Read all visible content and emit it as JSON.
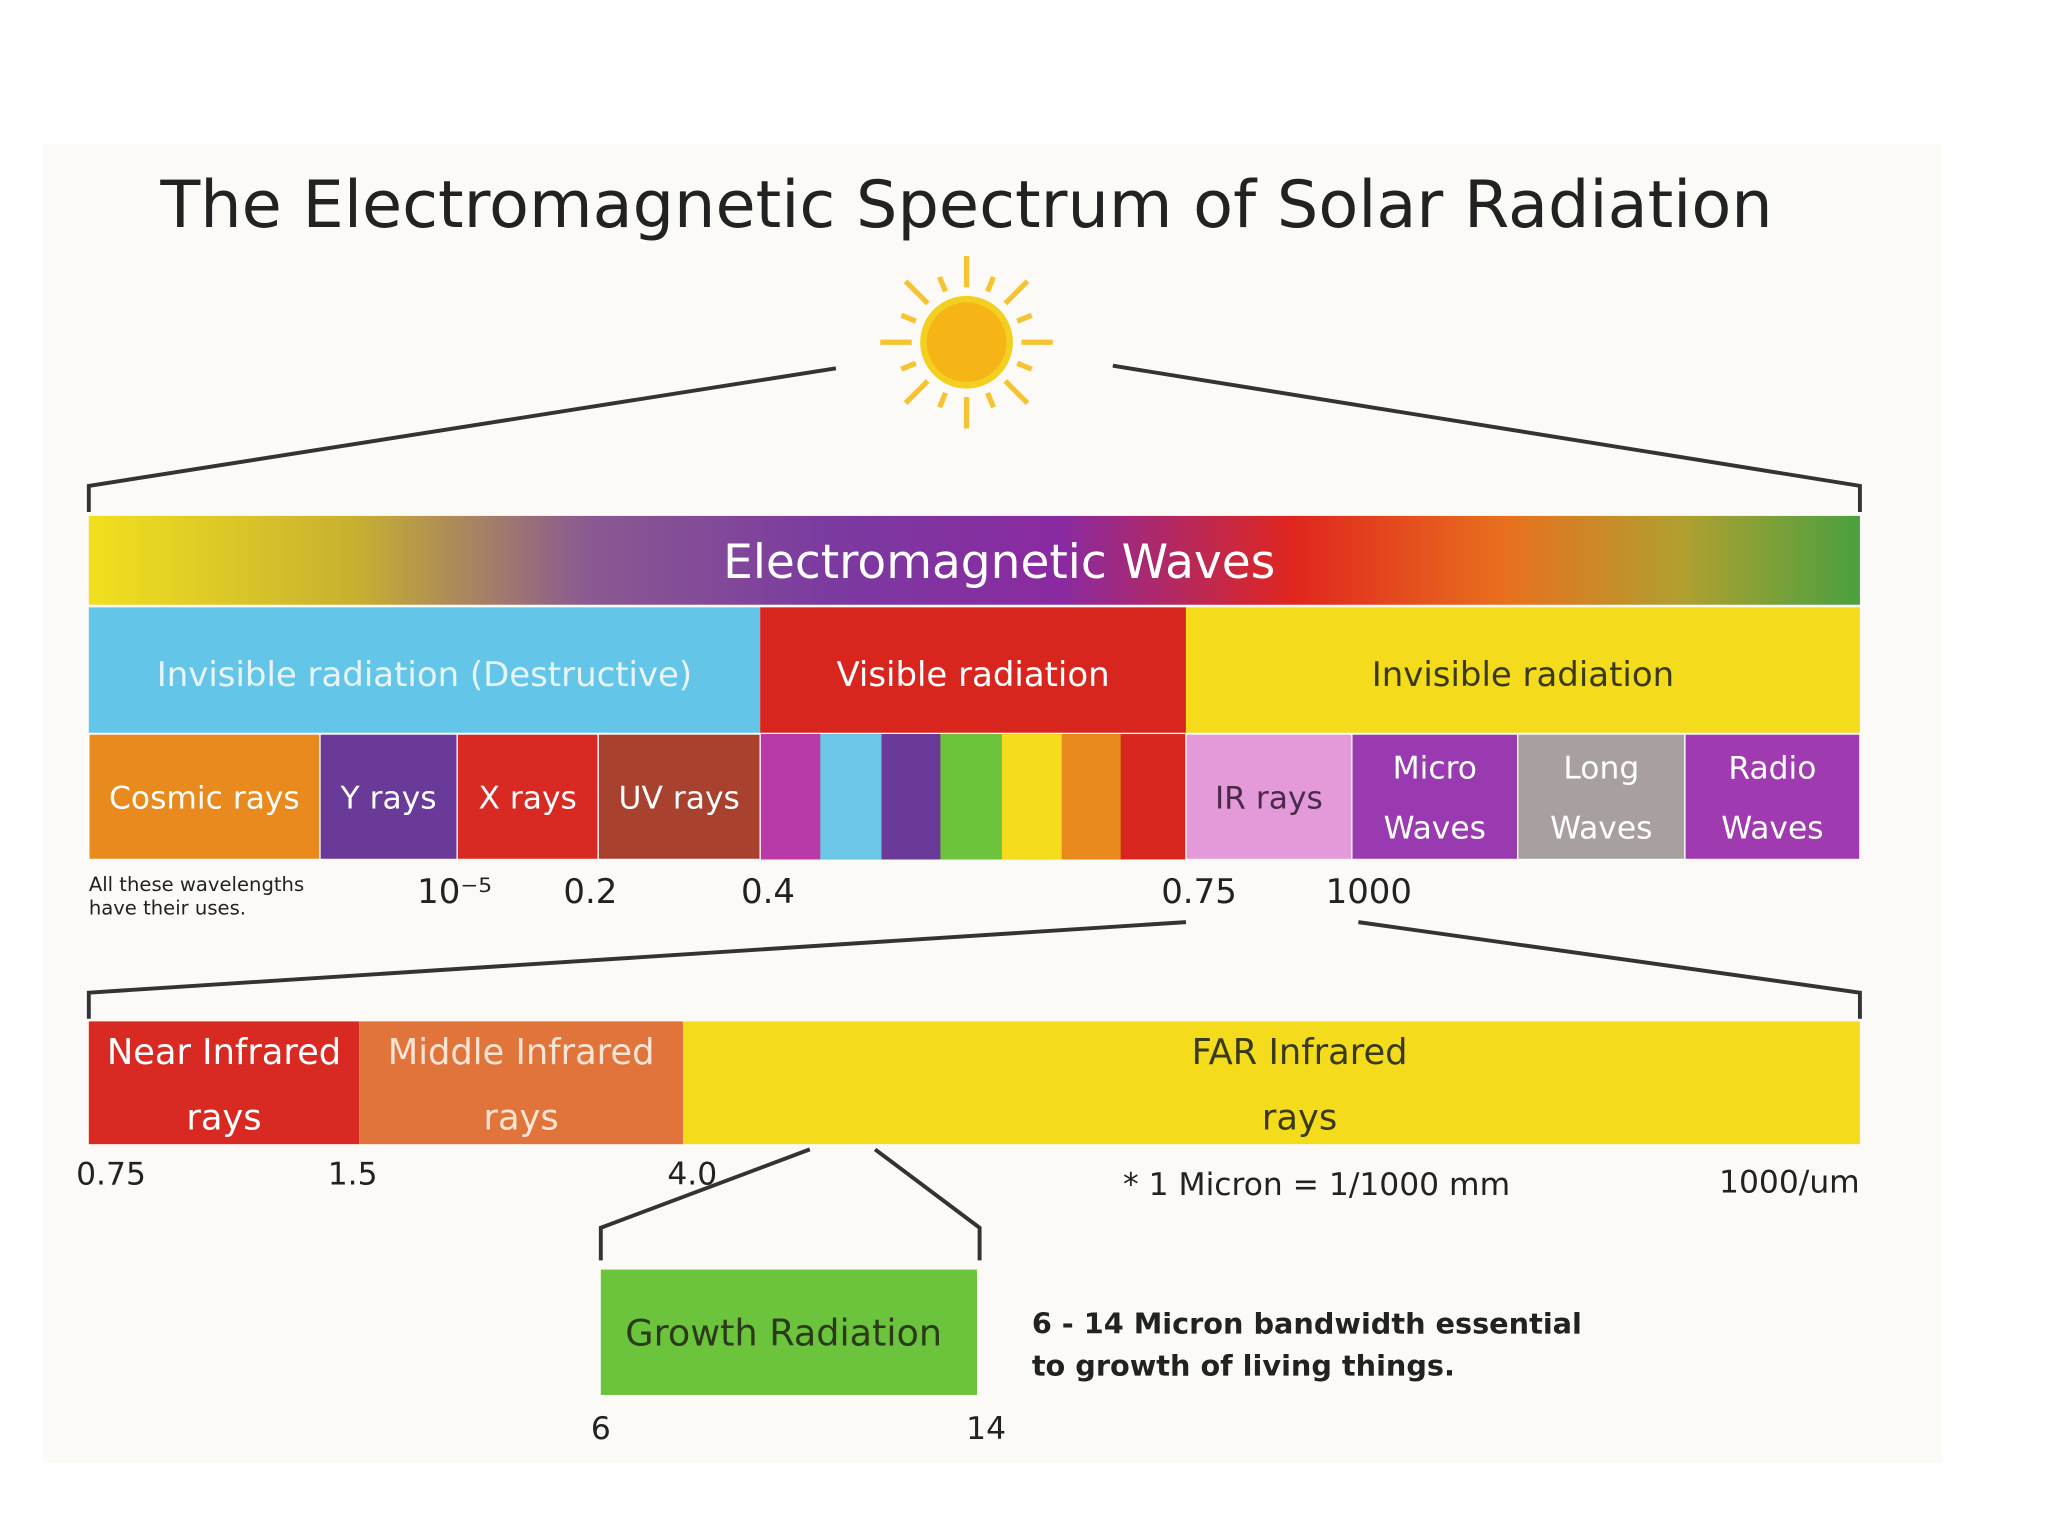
{
  "title": "The Electromagnetic Spectrum of Solar Radiation",
  "banner": "Electromagnetic Waves",
  "groups": [
    "Invisible radiation (Destructive)",
    "Visible radiation",
    "Invisible radiation"
  ],
  "bands": [
    [
      "Cosmic rays"
    ],
    [
      "Y rays"
    ],
    [
      "X rays"
    ],
    [
      "UV rays"
    ],
    [
      "IR rays"
    ],
    [
      "Micro",
      "Waves"
    ],
    [
      "Long",
      "Waves"
    ],
    [
      "Radio",
      "Waves"
    ]
  ],
  "note_uses": [
    "All these wavelengths",
    "have their uses."
  ],
  "ticks": [
    "10⁻⁵",
    "0.2",
    "0.4",
    "0.75",
    "1000"
  ],
  "infrared": [
    [
      "Near Infrared",
      "rays"
    ],
    [
      "Middle Infrared",
      "rays"
    ],
    [
      "FAR Infrared",
      "rays"
    ]
  ],
  "infrared_ticks": [
    "0.75",
    "1.5",
    "4.0"
  ],
  "micron_note": "* 1 Micron = 1/1000 mm",
  "infrared_end": "1000/um",
  "growth": "Growth Radiation",
  "growth_ticks": [
    "6",
    "14"
  ],
  "growth_note": [
    "6 - 14 Micron bandwidth essential",
    "to growth of living things."
  ]
}
